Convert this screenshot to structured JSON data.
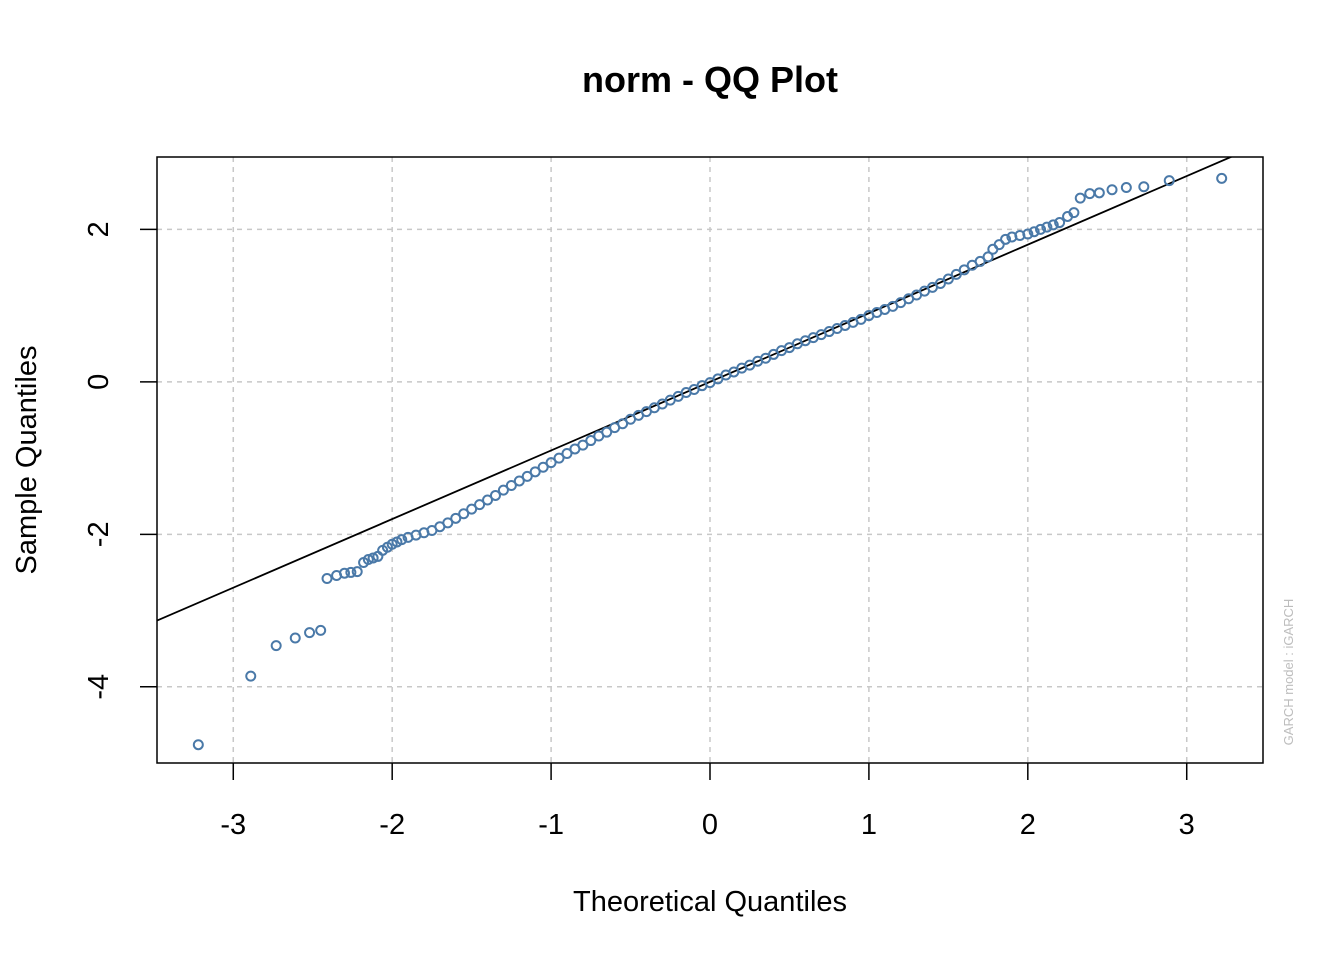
{
  "chart_data": {
    "type": "scatter",
    "title": "norm - QQ Plot",
    "xlabel": "Theoretical Quantiles",
    "ylabel": "Sample Quantiles",
    "watermark": "GARCH model :  iGARCH",
    "xlim": [
      -3.48,
      3.48
    ],
    "ylim": [
      -5.0,
      2.95
    ],
    "xticks": [
      -3,
      -2,
      -1,
      0,
      1,
      2,
      3
    ],
    "xtick_labels": [
      "-3",
      "-2",
      "-1",
      "0",
      "1",
      "2",
      "3"
    ],
    "yticks": [
      -4,
      -2,
      0,
      2
    ],
    "ytick_labels": [
      "-4",
      "-2",
      "0",
      "2"
    ],
    "grid": true,
    "point_color": "#4a79a8",
    "line_color": "#000000",
    "reference_line": {
      "intercept": 0.0,
      "slope": 0.9
    },
    "series": [
      {
        "points": [
          [
            -3.22,
            -4.76
          ],
          [
            -2.89,
            -3.86
          ],
          [
            -2.73,
            -3.46
          ],
          [
            -2.61,
            -3.36
          ],
          [
            -2.52,
            -3.29
          ],
          [
            -2.45,
            -3.26
          ],
          [
            -2.41,
            -2.58
          ],
          [
            -2.35,
            -2.54
          ],
          [
            -2.3,
            -2.51
          ],
          [
            -2.26,
            -2.5
          ],
          [
            -2.22,
            -2.49
          ],
          [
            -2.18,
            -2.37
          ],
          [
            -2.15,
            -2.33
          ],
          [
            -2.12,
            -2.31
          ],
          [
            -2.09,
            -2.29
          ],
          [
            -2.06,
            -2.21
          ],
          [
            -2.03,
            -2.17
          ],
          [
            -2.0,
            -2.13
          ],
          [
            -1.97,
            -2.1
          ],
          [
            -1.94,
            -2.07
          ],
          [
            -1.9,
            -2.04
          ],
          [
            -1.85,
            -2.01
          ],
          [
            -1.8,
            -1.98
          ],
          [
            -1.75,
            -1.95
          ],
          [
            -1.7,
            -1.9
          ],
          [
            -1.65,
            -1.85
          ],
          [
            -1.6,
            -1.79
          ],
          [
            -1.55,
            -1.73
          ],
          [
            -1.5,
            -1.67
          ],
          [
            -1.45,
            -1.61
          ],
          [
            -1.4,
            -1.55
          ],
          [
            -1.35,
            -1.49
          ],
          [
            -1.3,
            -1.42
          ],
          [
            -1.25,
            -1.36
          ],
          [
            -1.2,
            -1.3
          ],
          [
            -1.15,
            -1.24
          ],
          [
            -1.1,
            -1.18
          ],
          [
            -1.05,
            -1.12
          ],
          [
            -1.0,
            -1.06
          ],
          [
            -0.95,
            -1.0
          ],
          [
            -0.9,
            -0.94
          ],
          [
            -0.85,
            -0.88
          ],
          [
            -0.8,
            -0.83
          ],
          [
            -0.75,
            -0.77
          ],
          [
            -0.7,
            -0.71
          ],
          [
            -0.65,
            -0.66
          ],
          [
            -0.6,
            -0.6
          ],
          [
            -0.55,
            -0.55
          ],
          [
            -0.5,
            -0.49
          ],
          [
            -0.45,
            -0.44
          ],
          [
            -0.4,
            -0.39
          ],
          [
            -0.35,
            -0.34
          ],
          [
            -0.3,
            -0.29
          ],
          [
            -0.25,
            -0.24
          ],
          [
            -0.2,
            -0.19
          ],
          [
            -0.15,
            -0.14
          ],
          [
            -0.1,
            -0.1
          ],
          [
            -0.05,
            -0.05
          ],
          [
            0.0,
            -0.01
          ],
          [
            0.05,
            0.04
          ],
          [
            0.1,
            0.09
          ],
          [
            0.15,
            0.13
          ],
          [
            0.2,
            0.18
          ],
          [
            0.25,
            0.22
          ],
          [
            0.3,
            0.27
          ],
          [
            0.35,
            0.31
          ],
          [
            0.4,
            0.36
          ],
          [
            0.45,
            0.41
          ],
          [
            0.5,
            0.45
          ],
          [
            0.55,
            0.5
          ],
          [
            0.6,
            0.54
          ],
          [
            0.65,
            0.58
          ],
          [
            0.7,
            0.62
          ],
          [
            0.75,
            0.66
          ],
          [
            0.8,
            0.7
          ],
          [
            0.85,
            0.74
          ],
          [
            0.9,
            0.78
          ],
          [
            0.95,
            0.82
          ],
          [
            1.0,
            0.87
          ],
          [
            1.05,
            0.91
          ],
          [
            1.1,
            0.95
          ],
          [
            1.15,
            0.99
          ],
          [
            1.2,
            1.04
          ],
          [
            1.25,
            1.09
          ],
          [
            1.3,
            1.14
          ],
          [
            1.35,
            1.19
          ],
          [
            1.4,
            1.24
          ],
          [
            1.45,
            1.29
          ],
          [
            1.5,
            1.35
          ],
          [
            1.55,
            1.41
          ],
          [
            1.6,
            1.47
          ],
          [
            1.65,
            1.53
          ],
          [
            1.7,
            1.58
          ],
          [
            1.75,
            1.64
          ],
          [
            1.78,
            1.74
          ],
          [
            1.82,
            1.8
          ],
          [
            1.86,
            1.87
          ],
          [
            1.9,
            1.9
          ],
          [
            1.95,
            1.92
          ],
          [
            2.0,
            1.94
          ],
          [
            2.04,
            1.97
          ],
          [
            2.08,
            2.0
          ],
          [
            2.12,
            2.03
          ],
          [
            2.16,
            2.06
          ],
          [
            2.2,
            2.09
          ],
          [
            2.25,
            2.17
          ],
          [
            2.29,
            2.22
          ],
          [
            2.33,
            2.41
          ],
          [
            2.39,
            2.47
          ],
          [
            2.45,
            2.48
          ],
          [
            2.53,
            2.52
          ],
          [
            2.62,
            2.55
          ],
          [
            2.73,
            2.56
          ],
          [
            2.89,
            2.64
          ],
          [
            3.22,
            2.67
          ]
        ]
      }
    ]
  }
}
